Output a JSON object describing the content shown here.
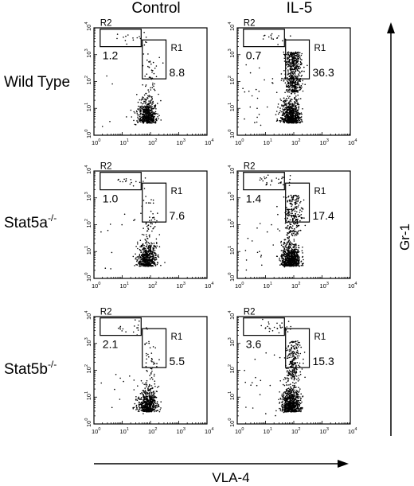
{
  "figure": {
    "columns": [
      "Control",
      "IL-5"
    ],
    "rows": [
      {
        "label": "Wild Type",
        "sup": ""
      },
      {
        "label": "Stat5a",
        "sup": "-/-"
      },
      {
        "label": "Stat5b",
        "sup": "-/-"
      }
    ],
    "x_axis_label": "VLA-4",
    "y_axis_label": "Gr-1",
    "tick_base": "10",
    "tick_exponents": [
      "0",
      "1",
      "2",
      "3",
      "4"
    ],
    "gate_names": {
      "r1": "R1",
      "r2": "R2"
    }
  },
  "chart_data": {
    "type": "scatter",
    "xscale": "log",
    "yscale": "log",
    "xlim": [
      1,
      10000
    ],
    "ylim": [
      1,
      10000
    ],
    "xlabel": "VLA-4",
    "ylabel": "Gr-1",
    "panels": [
      {
        "row": "Wild Type",
        "column": "Control",
        "r2_percent": "1.2",
        "r1_percent": "8.8",
        "cells": "sparse"
      },
      {
        "row": "Wild Type",
        "column": "IL-5",
        "r2_percent": "0.7",
        "r1_percent": "36.3",
        "cells": "dense"
      },
      {
        "row": "Stat5a-/-",
        "column": "Control",
        "r2_percent": "1.0",
        "r1_percent": "7.6",
        "cells": "sparse"
      },
      {
        "row": "Stat5a-/-",
        "column": "IL-5",
        "r2_percent": "1.4",
        "r1_percent": "17.4",
        "cells": "medium"
      },
      {
        "row": "Stat5b-/-",
        "column": "Control",
        "r2_percent": "2.1",
        "r1_percent": "5.5",
        "cells": "sparse"
      },
      {
        "row": "Stat5b-/-",
        "column": "IL-5",
        "r2_percent": "3.6",
        "r1_percent": "15.3",
        "cells": "medium"
      }
    ]
  }
}
